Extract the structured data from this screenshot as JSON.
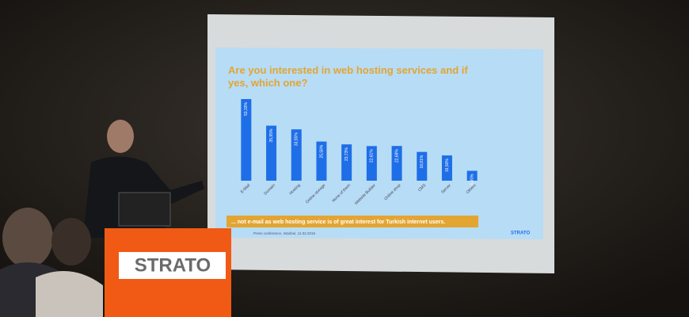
{
  "chart_data": {
    "type": "bar",
    "title": "Are you interested in web hosting services and if yes, which one?",
    "categories": [
      "E-Mail",
      "Domain",
      "Hosting",
      "Online storage",
      "None of them",
      "Website Builder",
      "Online shop",
      "CMS",
      "Server",
      "Others"
    ],
    "values": [
      53.33,
      35.95,
      33.55,
      25.58,
      23.73,
      22.61,
      22.68,
      18.81,
      16.5,
      6.45
    ],
    "value_labels": [
      "53,33%",
      "35,95%",
      "33,55%",
      "25,58%",
      "23,73%",
      "22,61%",
      "22,68%",
      "18,81%",
      "16,50%",
      "6,45%"
    ],
    "color": "#1e6ee8",
    "banner": "... not e-mail as web hosting service is of great interest for Turkish internet users.",
    "footer": "Press conference, Istanbul, 11.02.2016",
    "logo": "STRATO",
    "podium_logo": "STRATO"
  }
}
